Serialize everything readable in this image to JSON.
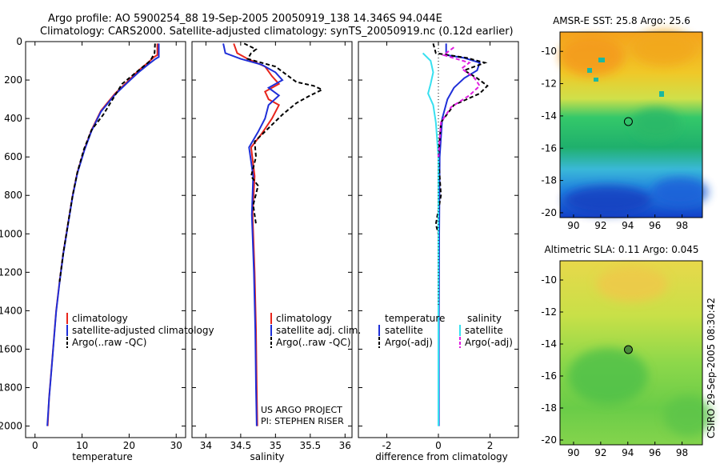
{
  "title_line1": "Argo profile: AO 5900254_88 19-Sep-2005 20050919_138 14.346S 94.044E",
  "title_line2": "Climatology: CARS2000. Satellite-adjusted climatology: synTS_20050919.nc (0.12d earlier)",
  "side_label": "CSIRO 29-Sep-2005 08:30:42",
  "colors": {
    "climatology": "#e8251c",
    "satellite": "#1f2fd8",
    "argo": "#000000",
    "salinity_sat": "#37e0f0",
    "salinity_argo": "#e01ee0"
  },
  "chart_data": [
    {
      "type": "line",
      "id": "temperature",
      "xlabel": "temperature",
      "ylabel": "",
      "xlim": [
        -2,
        32
      ],
      "ylim": [
        2060,
        0
      ],
      "xticks": [
        0,
        10,
        20,
        30
      ],
      "yticks": [
        0,
        200,
        400,
        600,
        800,
        1000,
        1200,
        1400,
        1600,
        1800,
        2000
      ],
      "legend_entries": [
        "climatology",
        "satellite-adjusted climatology",
        "Argo(..raw -QC)"
      ],
      "series": [
        {
          "name": "climatology",
          "points": [
            [
              26,
              10
            ],
            [
              26,
              70
            ],
            [
              25.3,
              80
            ],
            [
              24,
              110
            ],
            [
              22,
              150
            ],
            [
              20,
              200
            ],
            [
              17,
              270
            ],
            [
              14,
              360
            ],
            [
              12,
              460
            ],
            [
              10.5,
              560
            ],
            [
              9,
              680
            ],
            [
              8,
              800
            ],
            [
              7,
              950
            ],
            [
              6,
              1100
            ],
            [
              5.2,
              1250
            ],
            [
              4.5,
              1400
            ],
            [
              4,
              1550
            ],
            [
              3.5,
              1700
            ],
            [
              3,
              1850
            ],
            [
              2.7,
              2000
            ]
          ]
        },
        {
          "name": "satellite-adjusted climatology",
          "points": [
            [
              26.3,
              10
            ],
            [
              26.3,
              80
            ],
            [
              25.6,
              90
            ],
            [
              24,
              120
            ],
            [
              22,
              160
            ],
            [
              20,
              205
            ],
            [
              17,
              275
            ],
            [
              14,
              365
            ],
            [
              12,
              465
            ],
            [
              10.5,
              565
            ],
            [
              9,
              685
            ],
            [
              8,
              805
            ],
            [
              7,
              955
            ],
            [
              6,
              1105
            ],
            [
              5.2,
              1255
            ],
            [
              4.5,
              1405
            ],
            [
              4,
              1555
            ],
            [
              3.5,
              1705
            ],
            [
              3,
              1855
            ],
            [
              2.6,
              2000
            ]
          ]
        },
        {
          "name": "Argo(..raw -QC)",
          "points": [
            [
              25.5,
              10
            ],
            [
              25.4,
              60
            ],
            [
              24.5,
              100
            ],
            [
              23,
              130
            ],
            [
              21,
              170
            ],
            [
              18.5,
              220
            ],
            [
              16.5,
              300
            ],
            [
              14.5,
              380
            ],
            [
              12,
              460
            ],
            [
              10.4,
              560
            ],
            [
              9,
              680
            ],
            [
              8,
              800
            ],
            [
              7,
              950
            ],
            [
              6,
              1100
            ],
            [
              5.2,
              1250
            ]
          ]
        }
      ]
    },
    {
      "type": "line",
      "id": "salinity",
      "xlabel": "salinity",
      "ylabel": "",
      "xlim": [
        33.8,
        36.1
      ],
      "ylim": [
        2060,
        0
      ],
      "xticks": [
        34,
        34.5,
        35,
        35.5,
        36
      ],
      "yticks": [
        0,
        200,
        400,
        600,
        800,
        1000,
        1200,
        1400,
        1600,
        1800,
        2000
      ],
      "legend_entries": [
        "climatology",
        "satellite adj. clim.",
        "Argo(..raw -QC)"
      ],
      "annotations": [
        "US ARGO PROJECT",
        "PI: STEPHEN RISER"
      ],
      "series": [
        {
          "name": "climatology",
          "points": [
            [
              34.4,
              10
            ],
            [
              34.45,
              60
            ],
            [
              34.6,
              90
            ],
            [
              34.85,
              130
            ],
            [
              34.95,
              180
            ],
            [
              35.05,
              220
            ],
            [
              34.85,
              260
            ],
            [
              34.9,
              300
            ],
            [
              35.05,
              330
            ],
            [
              34.95,
              400
            ],
            [
              34.8,
              480
            ],
            [
              34.65,
              550
            ],
            [
              34.7,
              700
            ],
            [
              34.67,
              900
            ],
            [
              34.7,
              1200
            ],
            [
              34.72,
              1500
            ],
            [
              34.73,
              1800
            ],
            [
              34.74,
              2000
            ]
          ]
        },
        {
          "name": "satellite adj. clim.",
          "points": [
            [
              34.25,
              10
            ],
            [
              34.28,
              60
            ],
            [
              34.5,
              90
            ],
            [
              34.8,
              120
            ],
            [
              35.0,
              160
            ],
            [
              35.1,
              200
            ],
            [
              34.9,
              240
            ],
            [
              35.05,
              280
            ],
            [
              34.9,
              330
            ],
            [
              34.85,
              400
            ],
            [
              34.75,
              470
            ],
            [
              34.62,
              550
            ],
            [
              34.68,
              700
            ],
            [
              34.66,
              900
            ],
            [
              34.69,
              1200
            ],
            [
              34.71,
              1500
            ],
            [
              34.72,
              1800
            ],
            [
              34.73,
              2000
            ]
          ]
        },
        {
          "name": "Argo(..raw -QC)",
          "points": [
            [
              34.55,
              10
            ],
            [
              34.72,
              40
            ],
            [
              34.65,
              60
            ],
            [
              34.6,
              90
            ],
            [
              35.0,
              130
            ],
            [
              35.15,
              170
            ],
            [
              35.3,
              210
            ],
            [
              35.55,
              230
            ],
            [
              35.67,
              250
            ],
            [
              35.5,
              280
            ],
            [
              35.3,
              320
            ],
            [
              35.1,
              380
            ],
            [
              34.9,
              450
            ],
            [
              34.7,
              520
            ],
            [
              34.72,
              600
            ],
            [
              34.65,
              700
            ],
            [
              34.75,
              750
            ],
            [
              34.68,
              850
            ],
            [
              34.72,
              950
            ]
          ]
        }
      ]
    },
    {
      "type": "line",
      "id": "difference",
      "xlabel": "difference from climatology",
      "ylabel": "",
      "xlim": [
        -3.1,
        3.1
      ],
      "ylim": [
        2060,
        0
      ],
      "xticks": [
        -2,
        0,
        2
      ],
      "yticks": [
        0,
        200,
        400,
        600,
        800,
        1000,
        1200,
        1400,
        1600,
        1800,
        2000
      ],
      "legend_groups": [
        "temperature",
        "salinity"
      ],
      "legend_entries": [
        "satellite",
        "Argo(-adj)",
        "satellite",
        "Argo(-adj)"
      ],
      "series": [
        {
          "name": "temperature satellite",
          "points": [
            [
              0.3,
              10
            ],
            [
              0.3,
              70
            ],
            [
              1.0,
              85
            ],
            [
              1.6,
              110
            ],
            [
              1.5,
              150
            ],
            [
              1.0,
              190
            ],
            [
              0.6,
              240
            ],
            [
              0.35,
              300
            ],
            [
              0.15,
              400
            ],
            [
              0.05,
              600
            ],
            [
              0.03,
              1000
            ],
            [
              0.02,
              1500
            ],
            [
              0.02,
              2000
            ]
          ]
        },
        {
          "name": "temperature Argo(-adj)",
          "points": [
            [
              -0.2,
              10
            ],
            [
              -0.1,
              60
            ],
            [
              1.1,
              85
            ],
            [
              1.8,
              110
            ],
            [
              1.0,
              150
            ],
            [
              1.5,
              190
            ],
            [
              1.9,
              230
            ],
            [
              1.6,
              270
            ],
            [
              0.6,
              330
            ],
            [
              0.1,
              420
            ],
            [
              0.0,
              600
            ],
            [
              0.1,
              800
            ],
            [
              -0.1,
              950
            ],
            [
              0.0,
              1000
            ]
          ]
        },
        {
          "name": "salinity satellite",
          "points": [
            [
              -0.6,
              60
            ],
            [
              -0.3,
              100
            ],
            [
              -0.2,
              160
            ],
            [
              -0.3,
              220
            ],
            [
              -0.4,
              270
            ],
            [
              -0.2,
              330
            ],
            [
              -0.1,
              420
            ],
            [
              0.0,
              600
            ],
            [
              0.0,
              1000
            ],
            [
              0.0,
              1500
            ],
            [
              0.0,
              2000
            ]
          ]
        },
        {
          "name": "salinity Argo(-adj)",
          "points": [
            [
              0.6,
              30
            ],
            [
              0.2,
              70
            ],
            [
              1.2,
              110
            ],
            [
              0.9,
              140
            ],
            [
              1.4,
              190
            ],
            [
              1.6,
              230
            ],
            [
              1.2,
              280
            ],
            [
              0.5,
              340
            ],
            [
              0.1,
              420
            ],
            [
              0.0,
              600
            ]
          ]
        }
      ]
    },
    {
      "type": "heatmap",
      "id": "sst-map",
      "title": "AMSR-E SST: 25.8 Argo: 25.6",
      "xlim": [
        89,
        99.5
      ],
      "ylim": [
        -20.3,
        -8.8
      ],
      "xticks": [
        90,
        92,
        94,
        96,
        98
      ],
      "yticks": [
        -10,
        -12,
        -14,
        -16,
        -18,
        -20
      ],
      "argo_position": [
        94.04,
        -14.35
      ]
    },
    {
      "type": "heatmap",
      "id": "sla-map",
      "title": "Altimetric SLA: 0.11 Argo: 0.045",
      "xlim": [
        89,
        99.5
      ],
      "ylim": [
        -20.3,
        -8.8
      ],
      "xticks": [
        90,
        92,
        94,
        96,
        98
      ],
      "yticks": [
        -10,
        -12,
        -14,
        -16,
        -18,
        -20
      ],
      "argo_position": [
        94.04,
        -14.35
      ]
    }
  ]
}
